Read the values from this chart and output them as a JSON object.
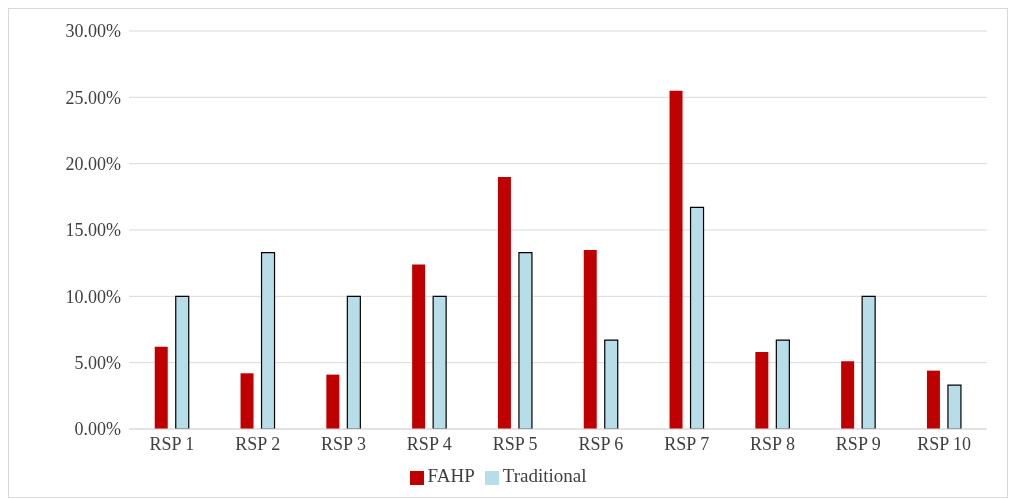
{
  "chart_data": {
    "type": "bar",
    "categories": [
      "RSP 1",
      "RSP 2",
      "RSP 3",
      "RSP 4",
      "RSP 5",
      "RSP 6",
      "RSP 7",
      "RSP 8",
      "RSP 9",
      "RSP 10"
    ],
    "series": [
      {
        "name": "FAHP",
        "color": "#c00000",
        "values": [
          6.2,
          4.2,
          4.1,
          12.4,
          19.0,
          13.5,
          25.5,
          5.8,
          5.1,
          4.4
        ]
      },
      {
        "name": "Traditional",
        "color": "#b7dde8",
        "values": [
          10.0,
          13.3,
          10.0,
          10.0,
          13.3,
          6.7,
          16.7,
          6.7,
          10.0,
          3.3
        ]
      }
    ],
    "ylim": [
      0,
      30
    ],
    "yticks": [
      {
        "value": 0,
        "label": "0.00%"
      },
      {
        "value": 5,
        "label": "5.00%"
      },
      {
        "value": 10,
        "label": "10.00%"
      },
      {
        "value": 15,
        "label": "15.00%"
      },
      {
        "value": 20,
        "label": "20.00%"
      },
      {
        "value": 25,
        "label": "25.00%"
      },
      {
        "value": 30,
        "label": "30.00%"
      }
    ],
    "grid": "y",
    "legend": "bottom"
  }
}
